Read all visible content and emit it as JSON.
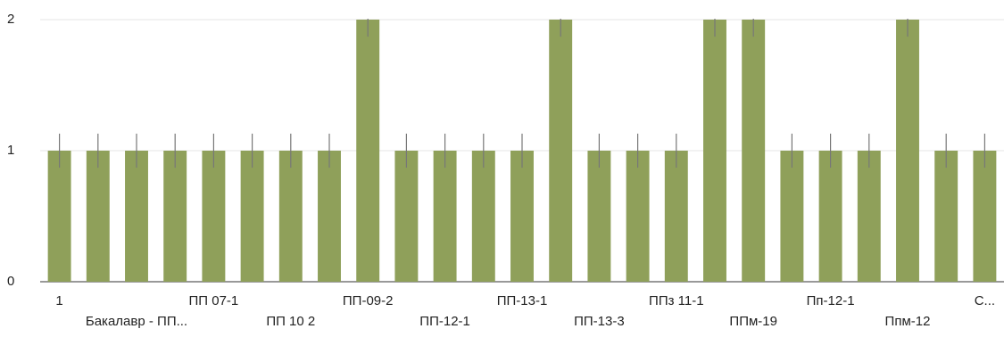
{
  "chart_data": {
    "type": "bar",
    "categories": [
      "1",
      null,
      "Бакалавр - ПП...",
      null,
      "ПП 07-1",
      null,
      "ПП 10 2",
      null,
      "ПП-09-2",
      null,
      "ПП-12-1",
      null,
      "ПП-13-1",
      null,
      "ПП-13-3",
      null,
      "ППз 11-1",
      null,
      "ППм-19",
      null,
      "Пп-12-1",
      null,
      "Ппм-12",
      null,
      "С..."
    ],
    "values": [
      1,
      1,
      1,
      1,
      1,
      1,
      1,
      1,
      2,
      1,
      1,
      1,
      1,
      2,
      1,
      1,
      1,
      2,
      2,
      1,
      1,
      1,
      2,
      1,
      1
    ],
    "errors": [
      0.13,
      0.13,
      0.13,
      0.13,
      0.13,
      0.13,
      0.13,
      0.13,
      0.13,
      0.13,
      0.13,
      0.13,
      0.13,
      0.13,
      0.13,
      0.13,
      0.13,
      0.13,
      0.13,
      0.13,
      0.13,
      0.13,
      0.13,
      0.13,
      0.13
    ],
    "color": "#8fa05a",
    "ylim": [
      0,
      2
    ],
    "yticks": [
      0,
      1,
      2
    ],
    "grid": true
  }
}
